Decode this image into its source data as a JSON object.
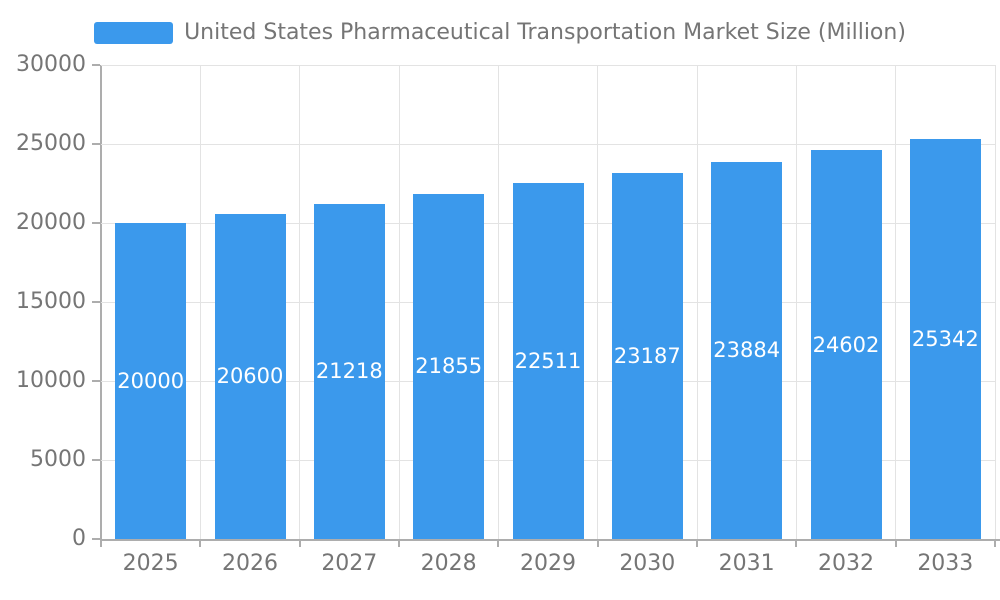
{
  "legend": {
    "label": "United States Pharmaceutical Transportation Market Size (Million)"
  },
  "chart_data": {
    "type": "bar",
    "title": "United States Pharmaceutical Transportation Market Size (Million)",
    "categories": [
      "2025",
      "2026",
      "2027",
      "2028",
      "2029",
      "2030",
      "2031",
      "2032",
      "2033"
    ],
    "values": [
      20000,
      20600,
      21218,
      21855,
      22511,
      23187,
      23884,
      24602,
      25342
    ],
    "xlabel": "",
    "ylabel": "",
    "ylim": [
      0,
      30000
    ],
    "yticks": [
      0,
      5000,
      10000,
      15000,
      20000,
      25000,
      30000
    ],
    "grid": true,
    "legend_position": "top-center",
    "bar_value_labels": "inside-middle",
    "colors": {
      "bar": "#3B99EC",
      "bar_label_text": "#FFFFFF",
      "axis_text": "#757575",
      "grid_line": "#E3E3E3",
      "axis_line": "#ADADAD",
      "background": "#FFFFFF"
    }
  }
}
